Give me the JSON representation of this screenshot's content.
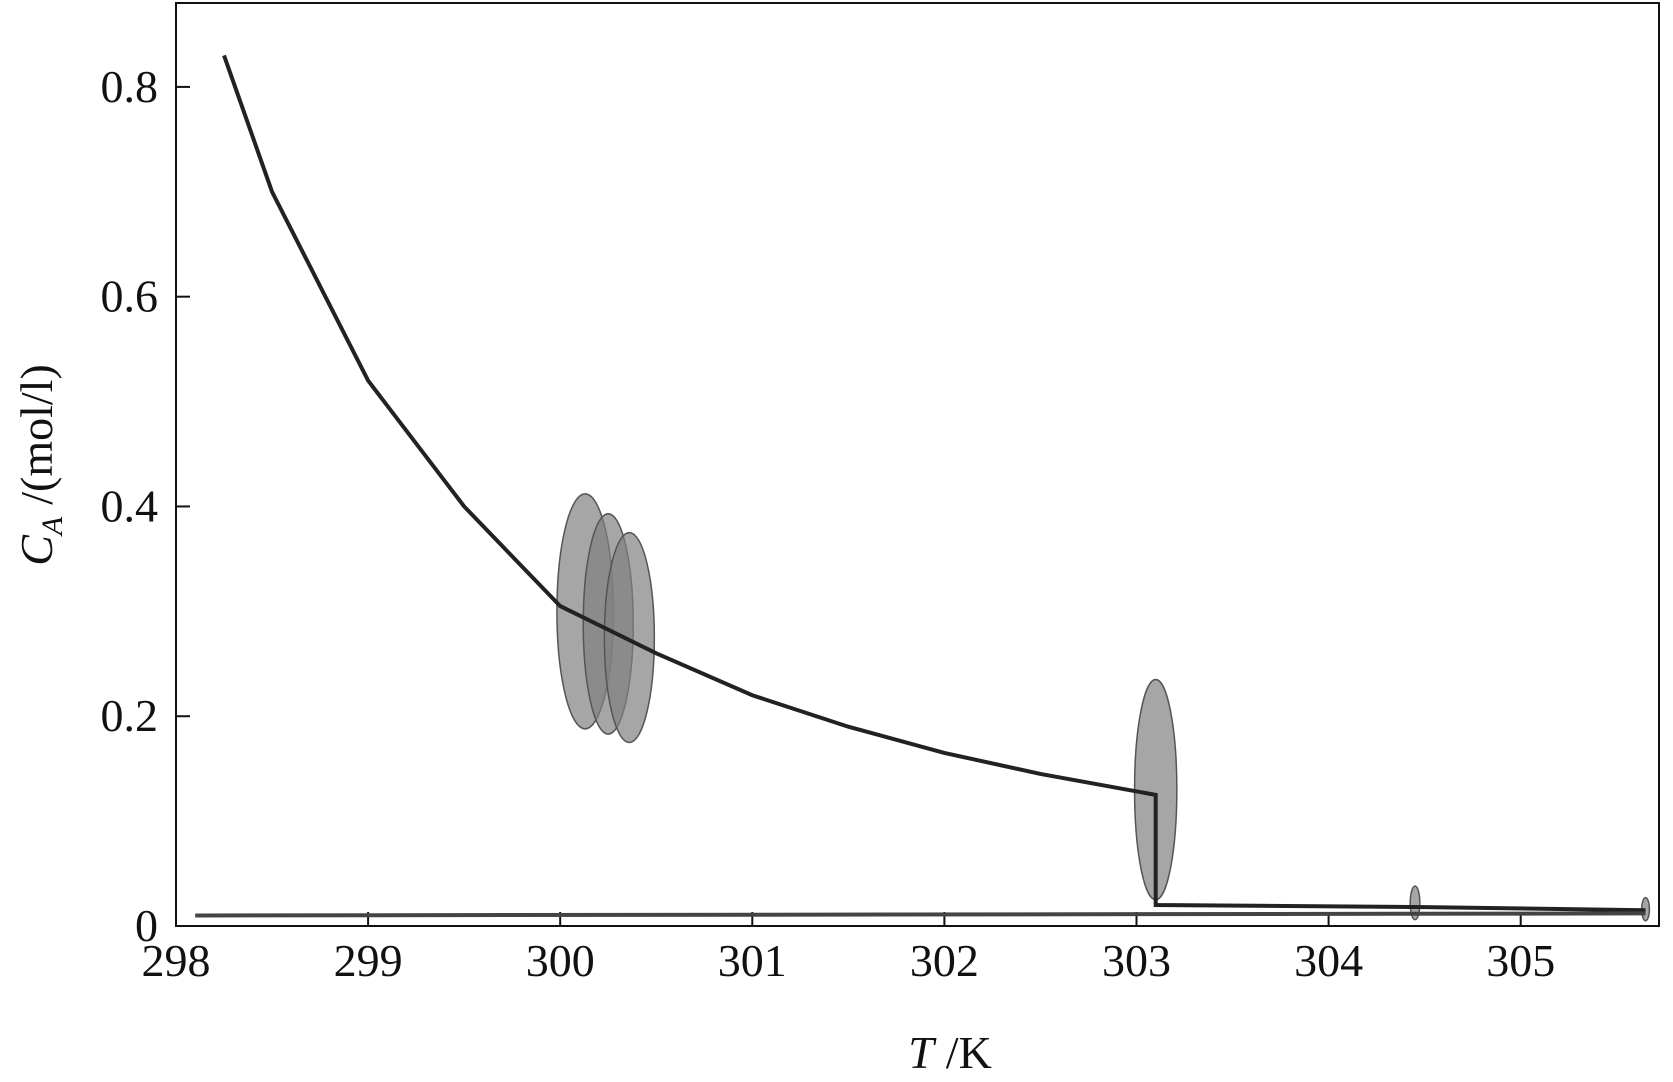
{
  "chart_data": {
    "type": "line",
    "x_label": {
      "symbol": "T",
      "unit": "/K"
    },
    "y_label": {
      "symbol": "C",
      "subscript": "A",
      "unit": "/(mol/l)"
    },
    "xlim": [
      298,
      305.72
    ],
    "ylim": [
      0,
      0.88
    ],
    "xticks": [
      298,
      299,
      300,
      301,
      302,
      303,
      304,
      305
    ],
    "yticks": [
      0,
      0.2,
      0.4,
      0.6,
      0.8
    ],
    "series": [
      {
        "color": "#222222",
        "x": [
          298.25,
          298.5,
          299,
          299.5,
          300,
          300.5,
          301,
          301.5,
          302,
          302.5,
          303.1,
          303.1,
          304.5,
          305.65
        ],
        "values": [
          0.83,
          0.7,
          0.52,
          0.4,
          0.305,
          0.26,
          0.22,
          0.19,
          0.165,
          0.145,
          0.125,
          0.02,
          0.018,
          0.015
        ]
      },
      {
        "color": "#444444",
        "x": [
          298.1,
          305.65
        ],
        "values": [
          0.01,
          0.012
        ]
      }
    ],
    "ellipse_color": "#808080",
    "ellipses": [
      {
        "x": 300.13,
        "y": 0.3,
        "x_half": 0.147,
        "y_half": 0.112
      },
      {
        "x": 300.25,
        "y": 0.288,
        "x_half": 0.13,
        "y_half": 0.105
      },
      {
        "x": 300.36,
        "y": 0.275,
        "x_half": 0.13,
        "y_half": 0.1
      },
      {
        "x": 303.1,
        "y": 0.13,
        "x_half": 0.11,
        "y_half": 0.105
      },
      {
        "x": 304.45,
        "y": 0.022,
        "x_half": 0.025,
        "y_half": 0.016
      },
      {
        "x": 305.65,
        "y": 0.016,
        "x_half": 0.02,
        "y_half": 0.011
      }
    ]
  }
}
